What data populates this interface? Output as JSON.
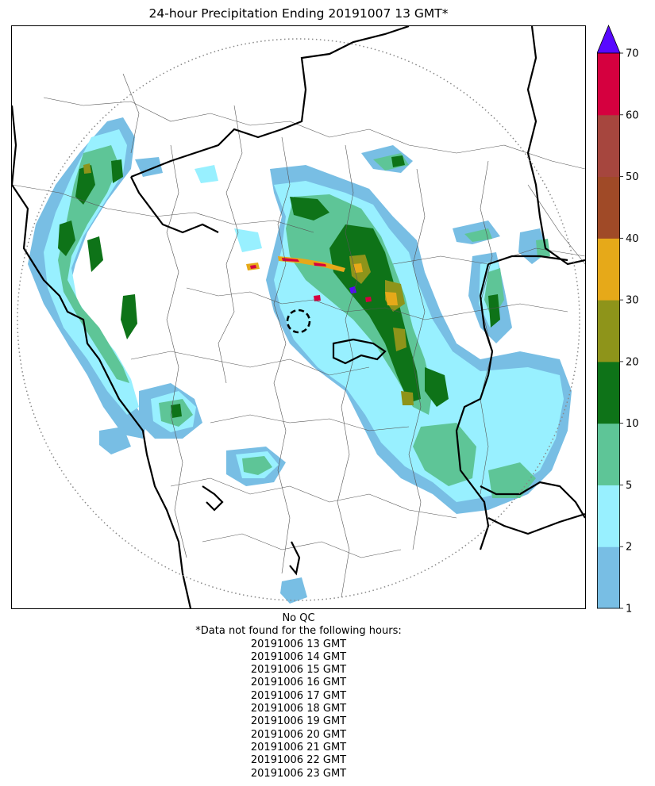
{
  "title": "24-hour Precipitation Ending 20191007 13 GMT*",
  "colorbar": {
    "levels": [
      1,
      2,
      5,
      10,
      20,
      30,
      40,
      50,
      60,
      70
    ],
    "colors": [
      "#78bee4",
      "#98f0ff",
      "#5ec597",
      "#0e7318",
      "#8e941a",
      "#e6a919",
      "#a04a27",
      "#a6463e",
      "#d5003f"
    ],
    "extend_color": "#5808ff",
    "tick_labels": [
      "1",
      "2",
      "5",
      "10",
      "20",
      "30",
      "40",
      "50",
      "60",
      "70"
    ]
  },
  "notes": {
    "qc": "No QC",
    "missing_header": "*Data not found for the following hours:",
    "missing_hours": [
      "20191006 13 GMT",
      "20191006 14 GMT",
      "20191006 15 GMT",
      "20191006 16 GMT",
      "20191006 17 GMT",
      "20191006 18 GMT",
      "20191006 19 GMT",
      "20191006 20 GMT",
      "20191006 21 GMT",
      "20191006 22 GMT",
      "20191006 23 GMT"
    ]
  },
  "map": {
    "radar_range_ring": "dotted-gray",
    "radar_site_marker": "dashed-black-circle",
    "borders": [
      "state-bold-black",
      "district-thin-gray"
    ]
  }
}
